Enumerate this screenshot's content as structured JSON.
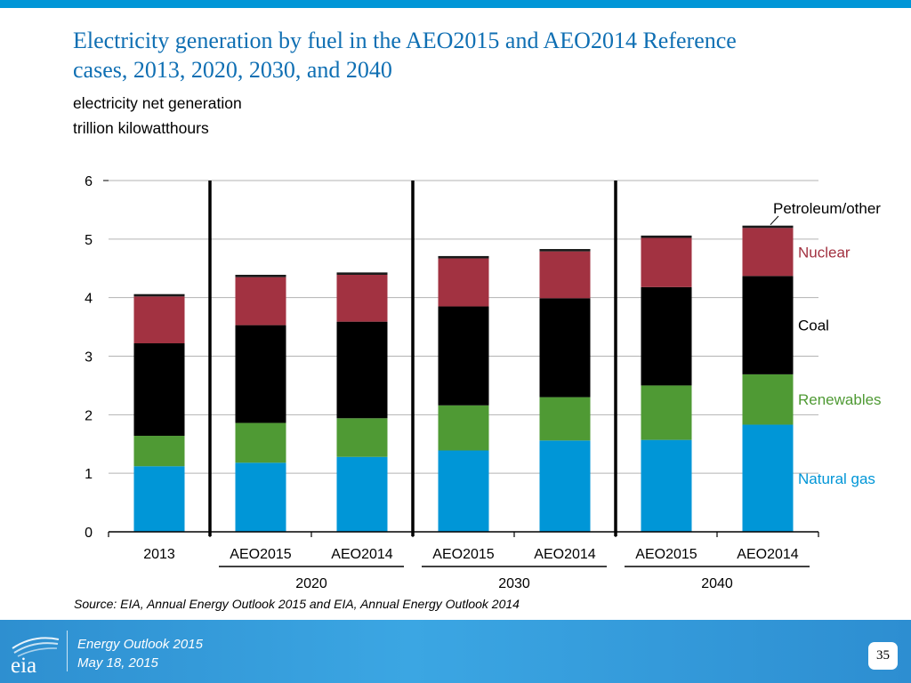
{
  "slide": {
    "title_line1": "Electricity generation by fuel in the AEO2015 and AEO2014  Reference",
    "title_line2": "cases, 2013, 2020, 2030, and 2040",
    "subtitle_line1": "electricity net generation",
    "subtitle_line2": "trillion kilowatthours",
    "source": "Source:  EIA, Annual Energy Outlook 2015 and EIA, Annual Energy Outlook 2014"
  },
  "footer": {
    "line1": "Energy  Outlook 2015",
    "line2": "May 18, 2015",
    "page_number": "35",
    "logo_text": "eia"
  },
  "chart_data": {
    "type": "bar",
    "stacked": true,
    "ylim": [
      0,
      6
    ],
    "yticks": [
      "0",
      "1",
      "2",
      "3",
      "4",
      "5",
      "6"
    ],
    "categories": [
      "2013",
      "AEO2015",
      "AEO2014",
      "AEO2015",
      "AEO2014",
      "AEO2015",
      "AEO2014"
    ],
    "groups": [
      {
        "label": "2020",
        "members": [
          1,
          2
        ]
      },
      {
        "label": "2030",
        "members": [
          3,
          4
        ]
      },
      {
        "label": "2040",
        "members": [
          5,
          6
        ]
      }
    ],
    "grid": true,
    "legend": "inline labels at right",
    "series": [
      {
        "name": "Natural gas",
        "color": "#0096d7",
        "label_color": "#0096d7",
        "values": [
          1.12,
          1.18,
          1.28,
          1.39,
          1.56,
          1.57,
          1.83
        ]
      },
      {
        "name": "Renewables",
        "color": "#4f9a34",
        "label_color": "#4f9a34",
        "values": [
          0.52,
          0.68,
          0.66,
          0.77,
          0.74,
          0.93,
          0.86
        ]
      },
      {
        "name": "Coal",
        "color": "#000000",
        "label_color": "#000000",
        "values": [
          1.58,
          1.67,
          1.65,
          1.69,
          1.69,
          1.68,
          1.68
        ]
      },
      {
        "name": "Nuclear",
        "color": "#a23241",
        "label_color": "#a23241",
        "values": [
          0.8,
          0.82,
          0.8,
          0.82,
          0.8,
          0.84,
          0.82
        ]
      },
      {
        "name": "Petroleum/other",
        "color": "#1a1a1a",
        "label_color": "#000000",
        "values": [
          0.04,
          0.04,
          0.04,
          0.04,
          0.04,
          0.04,
          0.04
        ]
      }
    ]
  }
}
